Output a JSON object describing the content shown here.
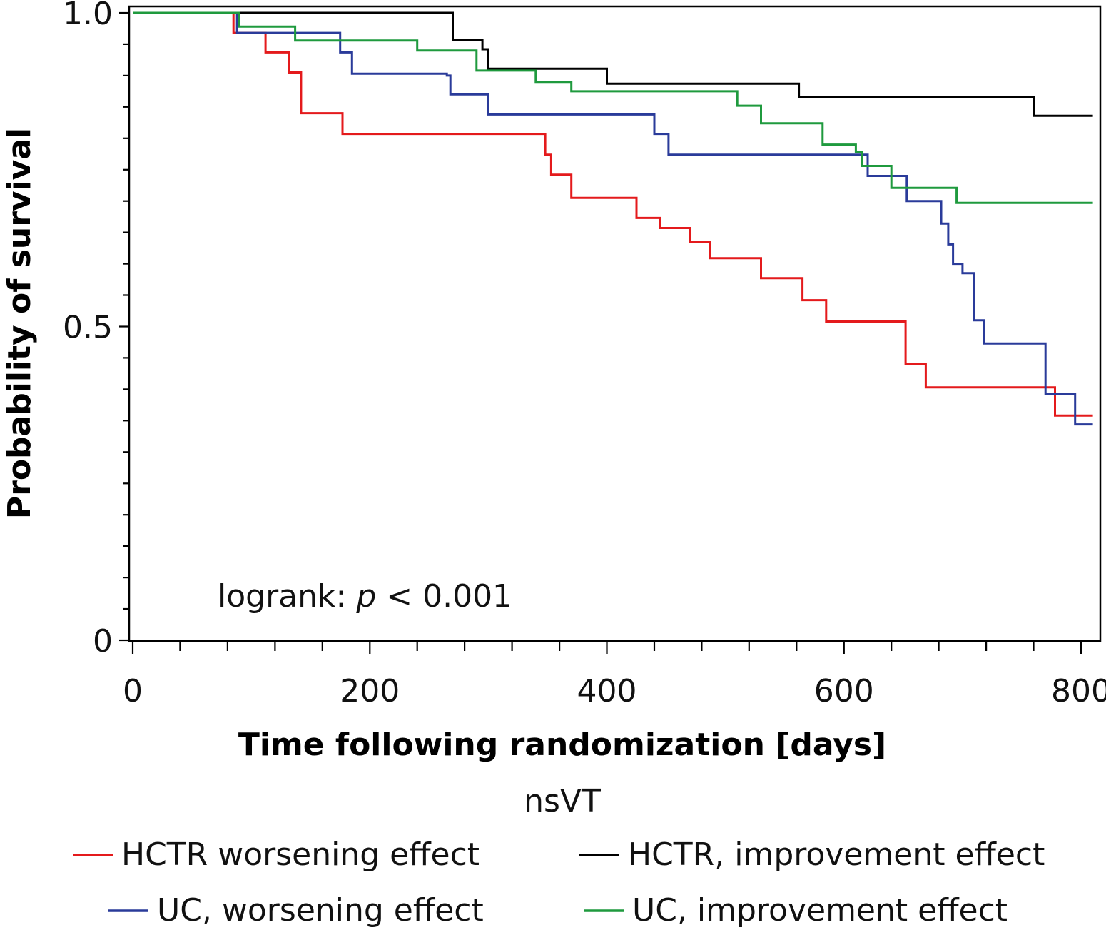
{
  "chart_data": {
    "type": "line",
    "step": true,
    "xlabel": "Time following randomization [days]",
    "ylabel": "Probability of survival",
    "xlim": [
      0,
      820
    ],
    "ylim": [
      0,
      1.0
    ],
    "x_ticks": [
      0,
      200,
      400,
      600,
      800
    ],
    "x_tick_labels": [
      "0",
      "200",
      "400",
      "600",
      "800"
    ],
    "y_ticks": [
      0,
      0.5,
      1.0
    ],
    "y_tick_labels": [
      "0",
      "0.5",
      "1.0"
    ],
    "grid": false,
    "annotation": {
      "prefix": "logrank: ",
      "italic": "p",
      "suffix": " < 0.001"
    },
    "legend": {
      "title": "nsVT",
      "placement": "bottom"
    },
    "series": [
      {
        "name": "HCTR worsening effect",
        "color": "#e41a1c",
        "points": [
          [
            0,
            1.0
          ],
          [
            85,
            0.968
          ],
          [
            112,
            0.937
          ],
          [
            132,
            0.905
          ],
          [
            142,
            0.84
          ],
          [
            177,
            0.807
          ],
          [
            322,
            0.807
          ],
          [
            348,
            0.774
          ],
          [
            353,
            0.742
          ],
          [
            370,
            0.705
          ],
          [
            425,
            0.673
          ],
          [
            445,
            0.657
          ],
          [
            470,
            0.635
          ],
          [
            487,
            0.609
          ],
          [
            502,
            0.609
          ],
          [
            530,
            0.577
          ],
          [
            565,
            0.542
          ],
          [
            585,
            0.508
          ],
          [
            648,
            0.508
          ],
          [
            652,
            0.44
          ],
          [
            663,
            0.44
          ],
          [
            669,
            0.403
          ],
          [
            770,
            0.403
          ],
          [
            778,
            0.358
          ],
          [
            810,
            0.358
          ]
        ]
      },
      {
        "name": "HCTR, improvement effect",
        "color": "#000000",
        "points": [
          [
            0,
            1.0
          ],
          [
            125,
            1.0
          ],
          [
            270,
            0.957
          ],
          [
            295,
            0.942
          ],
          [
            300,
            0.911
          ],
          [
            365,
            0.911
          ],
          [
            400,
            0.887
          ],
          [
            545,
            0.887
          ],
          [
            562,
            0.866
          ],
          [
            750,
            0.866
          ],
          [
            760,
            0.836
          ],
          [
            810,
            0.836
          ]
        ]
      },
      {
        "name": "UC, worsening effect",
        "color": "#2a3b9a",
        "points": [
          [
            0,
            1.0
          ],
          [
            88,
            0.968
          ],
          [
            150,
            0.968
          ],
          [
            175,
            0.937
          ],
          [
            185,
            0.903
          ],
          [
            265,
            0.9
          ],
          [
            268,
            0.87
          ],
          [
            300,
            0.838
          ],
          [
            440,
            0.807
          ],
          [
            452,
            0.774
          ],
          [
            530,
            0.774
          ],
          [
            620,
            0.74
          ],
          [
            650,
            0.74
          ],
          [
            653,
            0.7
          ],
          [
            680,
            0.7
          ],
          [
            682,
            0.664
          ],
          [
            688,
            0.631
          ],
          [
            692,
            0.6
          ],
          [
            700,
            0.585
          ],
          [
            710,
            0.51
          ],
          [
            718,
            0.473
          ],
          [
            765,
            0.473
          ],
          [
            770,
            0.392
          ],
          [
            790,
            0.392
          ],
          [
            795,
            0.344
          ],
          [
            810,
            0.344
          ]
        ]
      },
      {
        "name": "UC, improvement effect",
        "color": "#1f9a3e",
        "points": [
          [
            0,
            1.0
          ],
          [
            90,
            0.978
          ],
          [
            130,
            0.978
          ],
          [
            137,
            0.956
          ],
          [
            240,
            0.94
          ],
          [
            290,
            0.908
          ],
          [
            340,
            0.89
          ],
          [
            370,
            0.875
          ],
          [
            510,
            0.852
          ],
          [
            530,
            0.824
          ],
          [
            582,
            0.79
          ],
          [
            610,
            0.778
          ],
          [
            615,
            0.756
          ],
          [
            640,
            0.735
          ],
          [
            640,
            0.721
          ],
          [
            688,
            0.721
          ],
          [
            695,
            0.697
          ],
          [
            810,
            0.697
          ]
        ]
      }
    ]
  }
}
